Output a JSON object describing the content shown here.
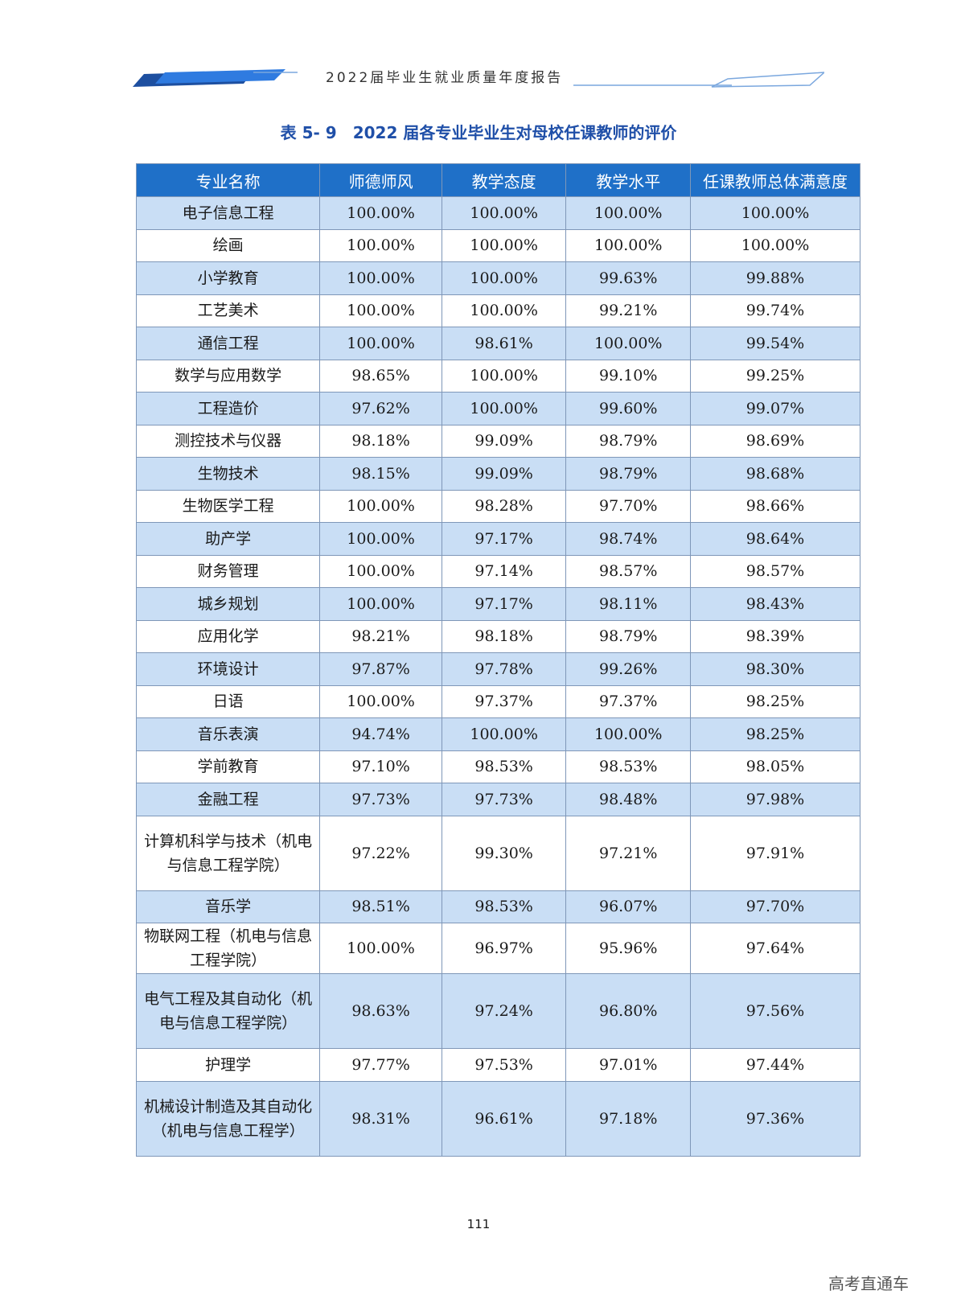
{
  "header": {
    "title": "2022届毕业生就业质量年度报告"
  },
  "caption": "表 5- 9　2022 届各专业毕业生对母校任课教师的评价",
  "table": {
    "columns": [
      "专业名称",
      "师德师风",
      "教学态度",
      "教学水平",
      "任课教师总体满意度"
    ],
    "rows": [
      [
        "电子信息工程",
        "100.00%",
        "100.00%",
        "100.00%",
        "100.00%"
      ],
      [
        "绘画",
        "100.00%",
        "100.00%",
        "100.00%",
        "100.00%"
      ],
      [
        "小学教育",
        "100.00%",
        "100.00%",
        "99.63%",
        "99.88%"
      ],
      [
        "工艺美术",
        "100.00%",
        "100.00%",
        "99.21%",
        "99.74%"
      ],
      [
        "通信工程",
        "100.00%",
        "98.61%",
        "100.00%",
        "99.54%"
      ],
      [
        "数学与应用数学",
        "98.65%",
        "100.00%",
        "99.10%",
        "99.25%"
      ],
      [
        "工程造价",
        "97.62%",
        "100.00%",
        "99.60%",
        "99.07%"
      ],
      [
        "测控技术与仪器",
        "98.18%",
        "99.09%",
        "98.79%",
        "98.69%"
      ],
      [
        "生物技术",
        "98.15%",
        "99.09%",
        "98.79%",
        "98.68%"
      ],
      [
        "生物医学工程",
        "100.00%",
        "98.28%",
        "97.70%",
        "98.66%"
      ],
      [
        "助产学",
        "100.00%",
        "97.17%",
        "98.74%",
        "98.64%"
      ],
      [
        "财务管理",
        "100.00%",
        "97.14%",
        "98.57%",
        "98.57%"
      ],
      [
        "城乡规划",
        "100.00%",
        "97.17%",
        "98.11%",
        "98.43%"
      ],
      [
        "应用化学",
        "98.21%",
        "98.18%",
        "98.79%",
        "98.39%"
      ],
      [
        "环境设计",
        "97.87%",
        "97.78%",
        "99.26%",
        "98.30%"
      ],
      [
        "日语",
        "100.00%",
        "97.37%",
        "97.37%",
        "98.25%"
      ],
      [
        "音乐表演",
        "94.74%",
        "100.00%",
        "100.00%",
        "98.25%"
      ],
      [
        "学前教育",
        "97.10%",
        "98.53%",
        "98.53%",
        "98.05%"
      ],
      [
        "金融工程",
        "97.73%",
        "97.73%",
        "98.48%",
        "97.98%"
      ],
      [
        "计算机科学与技术（机电与信息工程学院）",
        "97.22%",
        "99.30%",
        "97.21%",
        "97.91%"
      ],
      [
        "音乐学",
        "98.51%",
        "98.53%",
        "96.07%",
        "97.70%"
      ],
      [
        "物联网工程（机电与信息工程学院）",
        "100.00%",
        "96.97%",
        "95.96%",
        "97.64%"
      ],
      [
        "电气工程及其自动化（机电与信息工程学院）",
        "98.63%",
        "97.24%",
        "96.80%",
        "97.56%"
      ],
      [
        "护理学",
        "97.77%",
        "97.53%",
        "97.01%",
        "97.44%"
      ],
      [
        "机械设计制造及其自动化（机电与信息工程学）",
        "98.31%",
        "96.61%",
        "97.18%",
        "97.36%"
      ]
    ]
  },
  "page_number": "111",
  "watermark": "高考直通车",
  "colors": {
    "header_fill": "#1f70c8",
    "band_fill": "#c9def5",
    "caption_text": "#1f4fa8"
  }
}
